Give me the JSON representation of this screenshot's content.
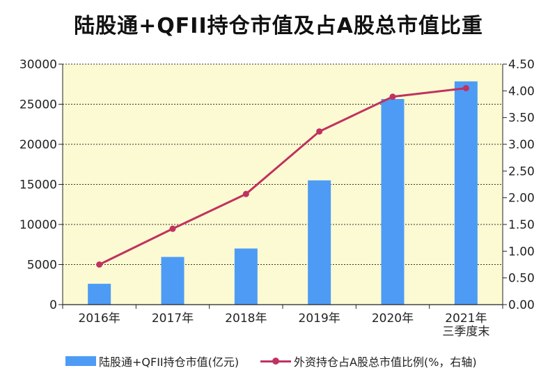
{
  "chart_data": {
    "type": "bar+line",
    "title": "陆股通+QFII持仓市值及占A股总市值比重",
    "categories": [
      "2016年",
      "2017年",
      "2018年",
      "2019年",
      "2020年",
      "2021年 三季度末"
    ],
    "series": [
      {
        "name": "陆股通+QFII持仓市值(亿元)",
        "type": "bar",
        "axis": "left",
        "color": "#4D9BF5",
        "values": [
          2600,
          5950,
          7000,
          15500,
          25650,
          27850
        ]
      },
      {
        "name": "外资持仓占A股总市值比例(%，右轴)",
        "type": "line",
        "axis": "right",
        "color": "#C0325F",
        "values": [
          0.75,
          1.42,
          2.07,
          3.24,
          3.89,
          4.05
        ]
      }
    ],
    "y_left": {
      "min": 0,
      "max": 30000,
      "ticks": [
        "0",
        "5000",
        "10000",
        "15000",
        "20000",
        "25000",
        "30000"
      ]
    },
    "y_right": {
      "min": 0,
      "max": 4.5,
      "ticks": [
        "0.00",
        "0.50",
        "1.00",
        "1.50",
        "2.00",
        "2.50",
        "3.00",
        "3.50",
        "4.00",
        "4.50"
      ]
    },
    "grid": true,
    "plot_background": "#FCFAD2",
    "legend_position": "bottom"
  }
}
